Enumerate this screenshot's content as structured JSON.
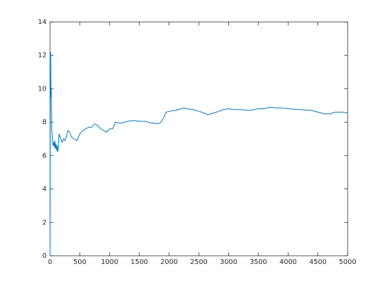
{
  "chart_data": {
    "type": "line",
    "x": [
      0,
      5,
      10,
      15,
      20,
      25,
      30,
      40,
      50,
      60,
      70,
      80,
      90,
      100,
      110,
      120,
      130,
      140,
      150,
      170,
      200,
      230,
      250,
      280,
      300,
      330,
      360,
      400,
      450,
      500,
      550,
      600,
      650,
      700,
      750,
      800,
      850,
      900,
      950,
      1000,
      1050,
      1100,
      1150,
      1200,
      1300,
      1400,
      1500,
      1600,
      1700,
      1750,
      1800,
      1850,
      1900,
      1950,
      2000,
      2100,
      2200,
      2250,
      2300,
      2400,
      2500,
      2550,
      2650,
      2700,
      2800,
      2900,
      3000,
      3100,
      3200,
      3350,
      3500,
      3600,
      3700,
      3800,
      3900,
      4000,
      4200,
      4400,
      4500,
      4600,
      4700,
      4800,
      4900,
      5000
    ],
    "series": [
      {
        "color": "#0072bd",
        "values": [
          0,
          11.5,
          12.2,
          9.5,
          10,
          8.6,
          7.5,
          7.0,
          6.6,
          6.8,
          6.5,
          6.9,
          6.4,
          6.7,
          6.3,
          6.6,
          6.2,
          6.5,
          7.3,
          7.1,
          6.8,
          7.0,
          6.9,
          7.2,
          7.5,
          7.4,
          7.1,
          7.0,
          6.9,
          7.3,
          7.5,
          7.6,
          7.7,
          7.7,
          7.9,
          7.8,
          7.6,
          7.5,
          7.4,
          7.6,
          7.6,
          8.0,
          7.95,
          7.95,
          8.05,
          8.1,
          8.05,
          8.05,
          7.95,
          7.95,
          7.9,
          7.95,
          8.2,
          8.6,
          8.65,
          8.7,
          8.8,
          8.85,
          8.8,
          8.75,
          8.65,
          8.6,
          8.45,
          8.5,
          8.6,
          8.75,
          8.8,
          8.75,
          8.75,
          8.7,
          8.8,
          8.8,
          8.9,
          8.85,
          8.85,
          8.8,
          8.75,
          8.7,
          8.6,
          8.5,
          8.5,
          8.6,
          8.6,
          8.55
        ]
      }
    ],
    "xlim": [
      0,
      5000
    ],
    "ylim": [
      0,
      14
    ],
    "xticks": [
      0,
      500,
      1000,
      1500,
      2000,
      2500,
      3000,
      3500,
      4000,
      4500,
      5000
    ],
    "yticks": [
      0,
      2,
      4,
      6,
      8,
      10,
      12,
      14
    ]
  }
}
